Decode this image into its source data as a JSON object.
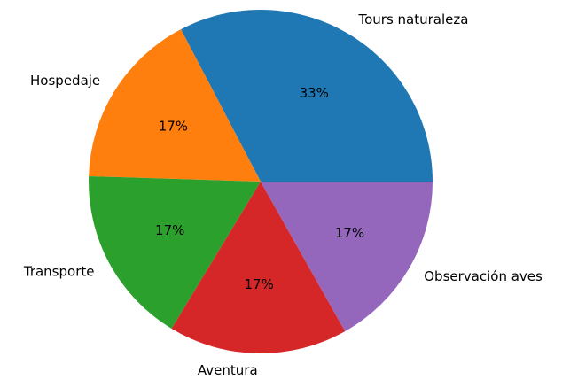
{
  "chart_data": {
    "type": "pie",
    "categories": [
      "Tours naturaleza",
      "Hospedaje",
      "Transporte",
      "Aventura",
      "Observación aves"
    ],
    "values": [
      33,
      17,
      17,
      17,
      17
    ],
    "value_labels": [
      "33%",
      "17%",
      "17%",
      "17%",
      "17%"
    ],
    "colors": [
      "#1f77b4",
      "#ff7f0e",
      "#2ca02c",
      "#d62728",
      "#9467bd"
    ]
  }
}
